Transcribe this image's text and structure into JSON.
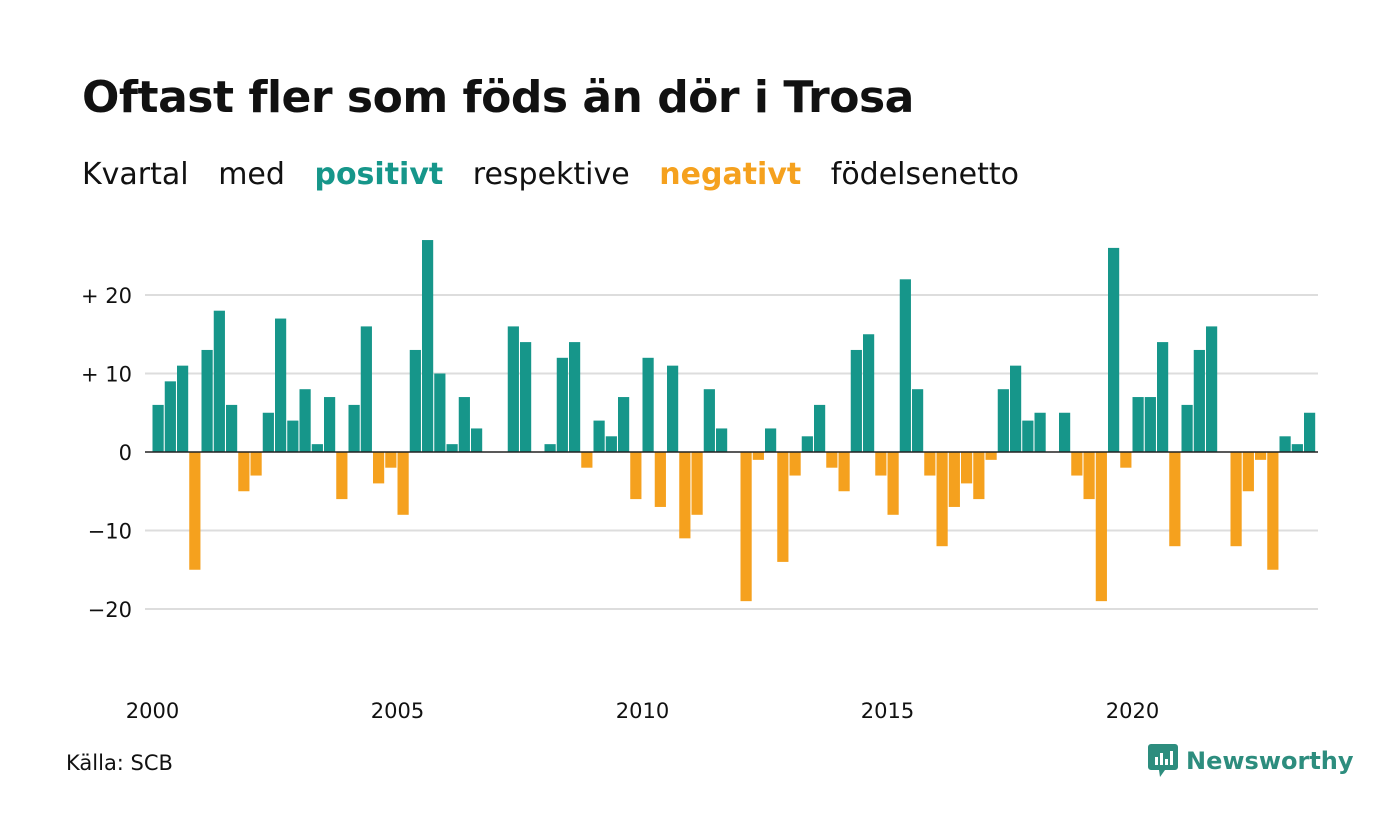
{
  "title": "Oftast fler som föds än dör i Trosa",
  "subtitle": {
    "part1": "Kvartal",
    "part2": "med",
    "positive_word": "positivt",
    "part3": "respektive",
    "negative_word": "negativt",
    "part4": "födelsenetto"
  },
  "colors": {
    "positive": "#16968a",
    "negative": "#f5a11e",
    "grid": "#dddddd",
    "text": "#111111",
    "brand": "#2d8d7e"
  },
  "source": "Källa: SCB",
  "brand": {
    "name": "Newsworthy",
    "icon": "newsworthy-logo-icon"
  },
  "chart_data": {
    "type": "bar",
    "xlabel": "",
    "ylabel": "",
    "ylim": [
      -25,
      29
    ],
    "y_ticks": [
      20,
      10,
      0,
      -10,
      -20
    ],
    "y_tick_labels": [
      "+ 20",
      "+ 10",
      "0",
      "−10",
      "−20"
    ],
    "x_tick_labels": [
      "2000",
      "2005",
      "2010",
      "2015",
      "2020"
    ],
    "grid": true,
    "first_year": 2000,
    "quarters_per_year": 4,
    "values": [
      6,
      9,
      11,
      -15,
      13,
      18,
      6,
      -5,
      -3,
      5,
      17,
      4,
      8,
      1,
      7,
      -6,
      6,
      16,
      -4,
      -2,
      -8,
      13,
      27,
      10,
      1,
      7,
      3,
      0,
      0,
      16,
      14,
      0,
      1,
      12,
      14,
      -2,
      4,
      2,
      7,
      -6,
      12,
      -7,
      11,
      -11,
      -8,
      8,
      3,
      0,
      -19,
      -1,
      3,
      -14,
      -3,
      2,
      6,
      -2,
      -5,
      13,
      15,
      -3,
      -8,
      22,
      8,
      -3,
      -12,
      -7,
      -4,
      -6,
      -1,
      8,
      11,
      4,
      5,
      0,
      5,
      -3,
      -6,
      -19,
      26,
      -2,
      7,
      7,
      14,
      -12,
      6,
      13,
      16,
      0,
      -12,
      -5,
      -1,
      -15,
      2,
      1,
      5
    ]
  }
}
